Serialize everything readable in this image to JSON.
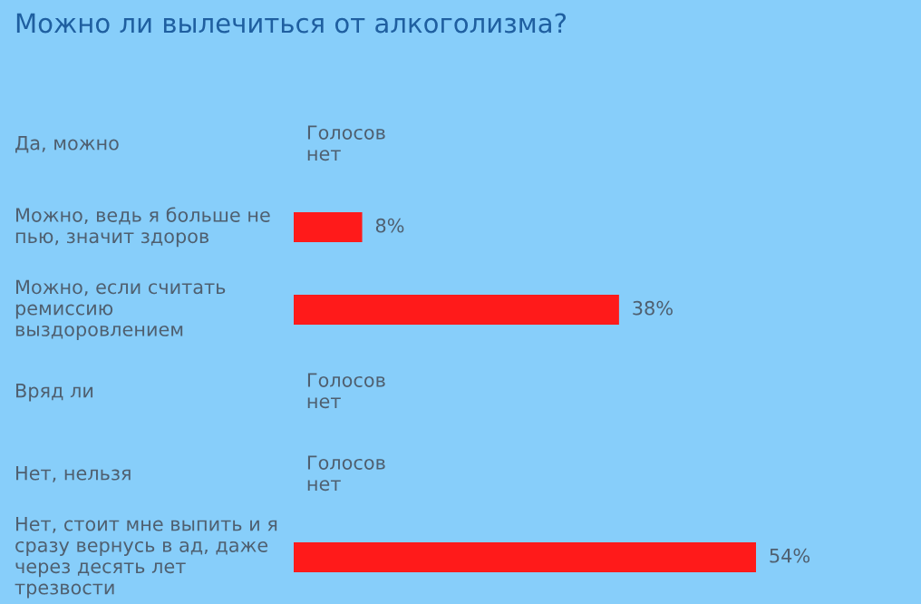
{
  "chart_data": {
    "type": "bar",
    "orientation": "horizontal",
    "title": "Можно ли вылечиться от алкоголизма?",
    "categories": [
      "Да, можно",
      "Можно, ведь я больше не\nпью, значит здоров",
      "Можно, если считать\nремиссию\nвыздоровлением",
      "Вряд ли",
      "Нет, нельзя",
      "Нет, стоит мне выпить и я\nсразу вернусь в ад, даже\nчерез десять лет\nтрезвости"
    ],
    "values": [
      0,
      8,
      38,
      0,
      0,
      54
    ],
    "value_labels": [
      "Голосов\nнет",
      "8%",
      "38%",
      "Голосов\nнет",
      "Голосов\nнет",
      "54%"
    ],
    "color": "#ff1a1a"
  }
}
